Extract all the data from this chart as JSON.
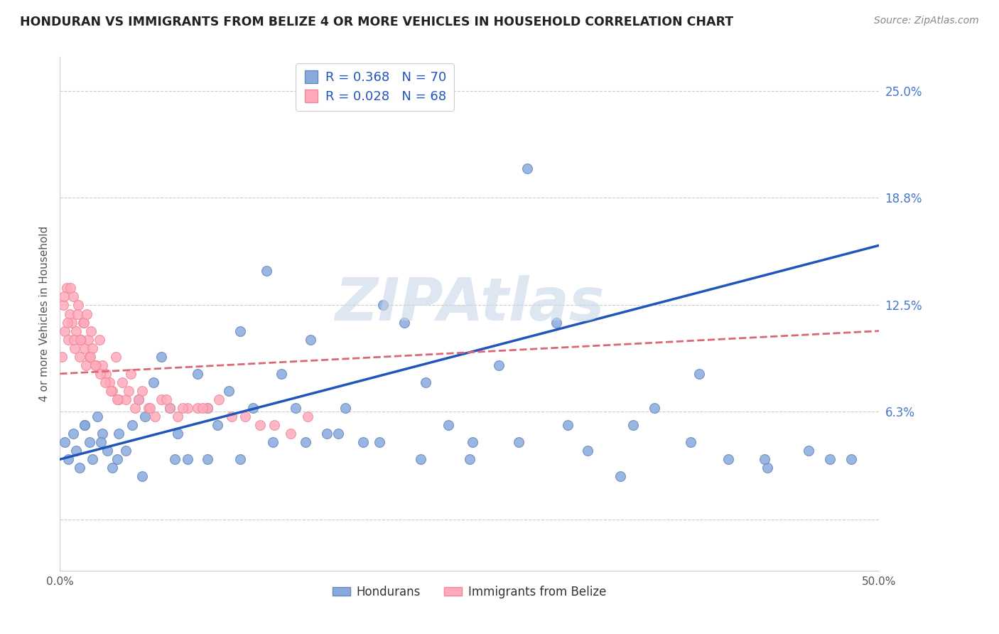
{
  "title": "HONDURAN VS IMMIGRANTS FROM BELIZE 4 OR MORE VEHICLES IN HOUSEHOLD CORRELATION CHART",
  "source": "Source: ZipAtlas.com",
  "ylabel": "4 or more Vehicles in Household",
  "xlim": [
    0.0,
    50.0
  ],
  "ylim": [
    -3.0,
    27.0
  ],
  "ytick_vals": [
    0.0,
    6.3,
    12.5,
    18.8,
    25.0
  ],
  "ytick_labels": [
    "",
    "6.3%",
    "12.5%",
    "18.8%",
    "25.0%"
  ],
  "xticks": [
    0.0,
    50.0
  ],
  "xtick_labels": [
    "0.0%",
    "50.0%"
  ],
  "grid_color": "#cccccc",
  "background_color": "#ffffff",
  "blue_color": "#88aadd",
  "pink_color": "#ffaabb",
  "blue_edge_color": "#6688bb",
  "pink_edge_color": "#ee8899",
  "blue_line_color": "#2255bb",
  "pink_line_color": "#dd6677",
  "tick_label_color": "#4477cc",
  "watermark_color": "#c8d8e8",
  "watermark": "ZIPAtlas",
  "legend_R1": "R = 0.368",
  "legend_N1": "N = 70",
  "legend_R2": "R = 0.028",
  "legend_N2": "N = 68",
  "legend_label1": "Hondurans",
  "legend_label2": "Immigrants from Belize",
  "blue_x": [
    0.3,
    0.5,
    0.8,
    1.0,
    1.2,
    1.5,
    1.8,
    2.0,
    2.3,
    2.6,
    2.9,
    3.2,
    3.6,
    4.0,
    4.4,
    4.8,
    5.2,
    5.7,
    6.2,
    6.7,
    7.2,
    7.8,
    8.4,
    9.0,
    9.6,
    10.3,
    11.0,
    11.8,
    12.6,
    13.5,
    14.4,
    15.3,
    16.3,
    17.4,
    18.5,
    19.7,
    21.0,
    22.3,
    23.7,
    25.2,
    26.8,
    28.5,
    30.3,
    32.2,
    34.2,
    36.3,
    38.5,
    40.8,
    43.2,
    45.7,
    48.3,
    1.5,
    2.5,
    3.5,
    5.0,
    7.0,
    9.0,
    11.0,
    13.0,
    15.0,
    17.0,
    19.5,
    22.0,
    25.0,
    28.0,
    31.0,
    35.0,
    39.0,
    43.0,
    47.0
  ],
  "blue_y": [
    4.5,
    3.5,
    5.0,
    4.0,
    3.0,
    5.5,
    4.5,
    3.5,
    6.0,
    5.0,
    4.0,
    3.0,
    5.0,
    4.0,
    5.5,
    7.0,
    6.0,
    8.0,
    9.5,
    6.5,
    5.0,
    3.5,
    8.5,
    6.5,
    5.5,
    7.5,
    11.0,
    6.5,
    14.5,
    8.5,
    6.5,
    10.5,
    5.0,
    6.5,
    4.5,
    12.5,
    11.5,
    8.0,
    5.5,
    4.5,
    9.0,
    20.5,
    11.5,
    4.0,
    2.5,
    6.5,
    4.5,
    3.5,
    3.0,
    4.0,
    3.5,
    5.5,
    4.5,
    3.5,
    2.5,
    3.5,
    3.5,
    3.5,
    4.5,
    4.5,
    5.0,
    4.5,
    3.5,
    3.5,
    4.5,
    5.5,
    5.5,
    8.5,
    3.5,
    3.5
  ],
  "pink_x": [
    0.1,
    0.2,
    0.3,
    0.4,
    0.5,
    0.6,
    0.7,
    0.8,
    0.9,
    1.0,
    1.1,
    1.2,
    1.3,
    1.4,
    1.5,
    1.6,
    1.7,
    1.8,
    1.9,
    2.0,
    2.2,
    2.4,
    2.6,
    2.8,
    3.0,
    3.2,
    3.4,
    3.6,
    3.8,
    4.0,
    4.3,
    4.6,
    5.0,
    5.4,
    5.8,
    6.2,
    6.7,
    7.2,
    7.8,
    8.4,
    9.0,
    9.7,
    10.5,
    11.3,
    12.2,
    13.1,
    14.1,
    15.1,
    0.25,
    0.45,
    0.65,
    0.85,
    1.05,
    1.25,
    1.45,
    1.65,
    1.85,
    2.15,
    2.45,
    2.75,
    3.1,
    3.5,
    4.2,
    4.8,
    5.5,
    6.5,
    7.5,
    8.7
  ],
  "pink_y": [
    9.5,
    12.5,
    11.0,
    13.5,
    10.5,
    12.0,
    11.5,
    13.0,
    10.0,
    11.0,
    12.5,
    9.5,
    10.5,
    11.5,
    10.0,
    9.0,
    10.5,
    9.5,
    11.0,
    10.0,
    9.0,
    10.5,
    9.0,
    8.5,
    8.0,
    7.5,
    9.5,
    7.0,
    8.0,
    7.0,
    8.5,
    6.5,
    7.5,
    6.5,
    6.0,
    7.0,
    6.5,
    6.0,
    6.5,
    6.5,
    6.5,
    7.0,
    6.0,
    6.0,
    5.5,
    5.5,
    5.0,
    6.0,
    13.0,
    11.5,
    13.5,
    10.5,
    12.0,
    10.5,
    11.5,
    12.0,
    9.5,
    9.0,
    8.5,
    8.0,
    7.5,
    7.0,
    7.5,
    7.0,
    6.5,
    7.0,
    6.5,
    6.5
  ],
  "blue_trend_x": [
    0.0,
    50.0
  ],
  "blue_trend_y": [
    3.5,
    16.0
  ],
  "pink_trend_x": [
    0.0,
    50.0
  ],
  "pink_trend_y": [
    8.5,
    11.0
  ]
}
